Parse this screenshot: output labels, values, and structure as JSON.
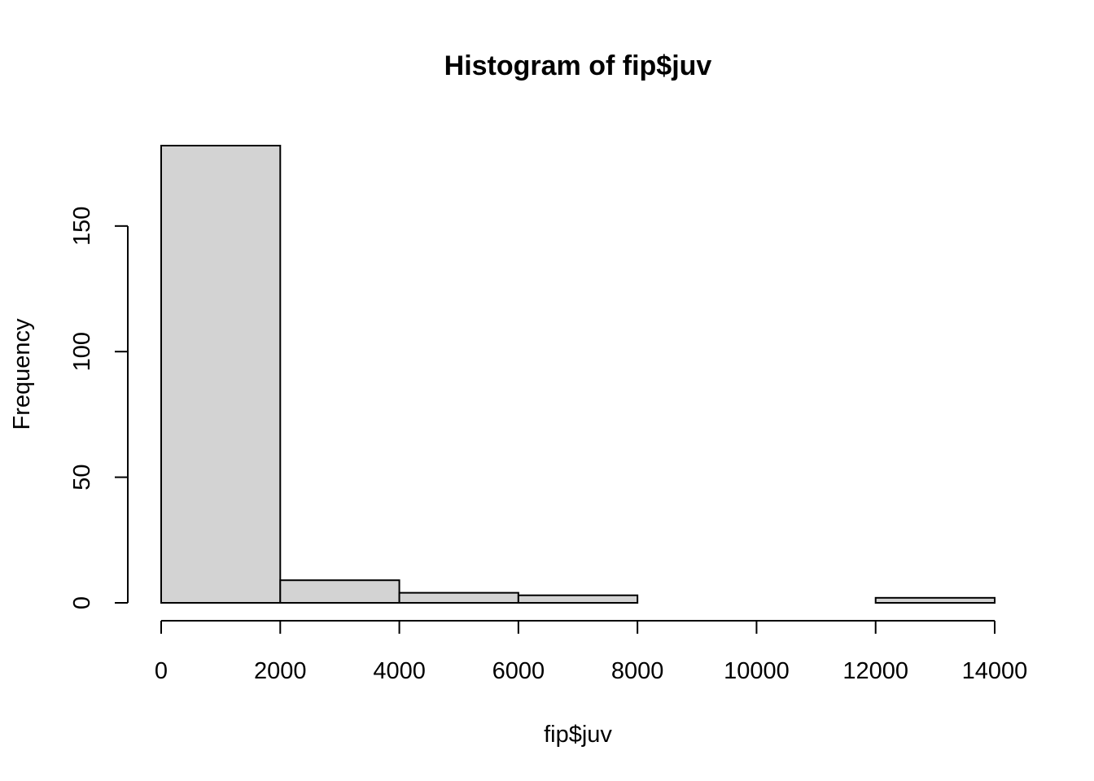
{
  "chart_data": {
    "type": "bar",
    "subtype": "histogram",
    "title": "Histogram of fip$juv",
    "xlabel": "fip$juv",
    "ylabel": "Frequency",
    "bins": [
      {
        "start": 0,
        "end": 2000,
        "count": 182
      },
      {
        "start": 2000,
        "end": 4000,
        "count": 9
      },
      {
        "start": 4000,
        "end": 6000,
        "count": 4
      },
      {
        "start": 6000,
        "end": 8000,
        "count": 3
      },
      {
        "start": 8000,
        "end": 10000,
        "count": 0
      },
      {
        "start": 10000,
        "end": 12000,
        "count": 0
      },
      {
        "start": 12000,
        "end": 14000,
        "count": 2
      }
    ],
    "xlim": [
      0,
      14000
    ],
    "ylim": [
      0,
      182
    ],
    "xticks": [
      0,
      2000,
      4000,
      6000,
      8000,
      10000,
      12000,
      14000
    ],
    "xtick_labels": [
      "0",
      "2000",
      "4000",
      "6000",
      "8000",
      "10000",
      "12000",
      "14000"
    ],
    "yticks": [
      0,
      50,
      100,
      150
    ],
    "ytick_labels": [
      "0",
      "50",
      "100",
      "150"
    ],
    "grid": false,
    "legend": "none",
    "colors": {
      "bar_fill": "#d3d3d3",
      "bar_stroke": "#000000"
    }
  }
}
